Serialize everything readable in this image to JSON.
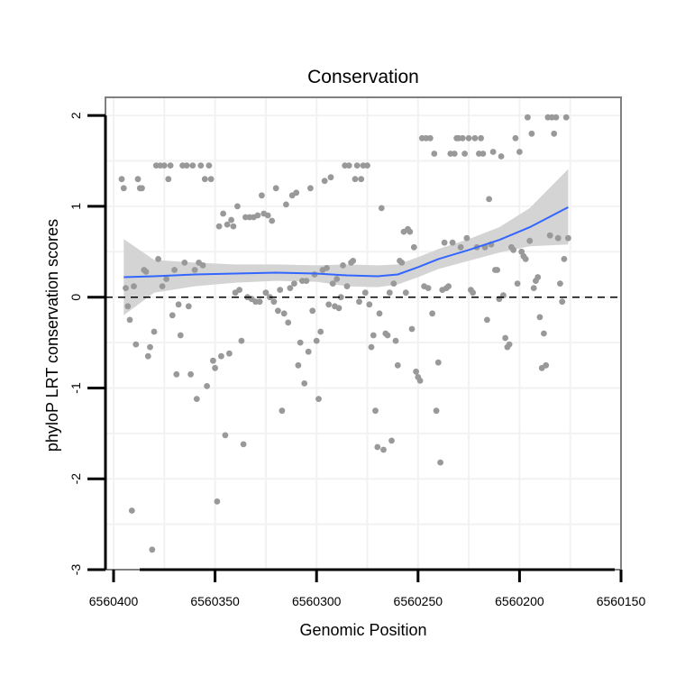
{
  "chart_data": {
    "type": "scatter",
    "title": "Conservation",
    "xlabel": "Genomic Position",
    "ylabel": "phyloP LRT conservation scores",
    "x_reversed": true,
    "xlim": [
      6560404,
      6560150
    ],
    "ylim": [
      -3,
      2.2
    ],
    "xticks": [
      6560400,
      6560350,
      6560300,
      6560250,
      6560200,
      6560150
    ],
    "xtick_labels": [
      "6560400",
      "6560350",
      "6560300",
      "6560250",
      "6560200",
      "6560150"
    ],
    "yticks": [
      -3,
      -2,
      -1,
      0,
      1,
      2
    ],
    "ytick_labels": [
      "-3",
      "-2",
      "-1",
      "0",
      "1",
      "2"
    ],
    "reference_line": {
      "y": 0,
      "style": "dashed"
    },
    "colors": {
      "points": "#999999",
      "smooth": "#3366ff",
      "ribbon": "#d4d4d4",
      "panel_border": "#808080",
      "grid": "#f2f2f2"
    },
    "series": [
      {
        "name": "scores",
        "points": [
          [
            6560396,
            1.3
          ],
          [
            6560395,
            1.2
          ],
          [
            6560394,
            0.1
          ],
          [
            6560393,
            -0.1
          ],
          [
            6560392,
            -0.25
          ],
          [
            6560391,
            -2.35
          ],
          [
            6560390,
            0.12
          ],
          [
            6560389,
            -0.52
          ],
          [
            6560388,
            1.3
          ],
          [
            6560387,
            1.2
          ],
          [
            6560386,
            1.2
          ],
          [
            6560385,
            0.3
          ],
          [
            6560384,
            0.28
          ],
          [
            6560383,
            -0.65
          ],
          [
            6560382,
            -0.55
          ],
          [
            6560381,
            -2.78
          ],
          [
            6560380,
            -0.38
          ],
          [
            6560379,
            1.45
          ],
          [
            6560378,
            0.42
          ],
          [
            6560377,
            1.45
          ],
          [
            6560376,
            0.12
          ],
          [
            6560375,
            1.45
          ],
          [
            6560374,
            0.2
          ],
          [
            6560373,
            1.3
          ],
          [
            6560372,
            1.45
          ],
          [
            6560371,
            -0.2
          ],
          [
            6560370,
            0.3
          ],
          [
            6560369,
            -0.85
          ],
          [
            6560368,
            -0.08
          ],
          [
            6560367,
            -0.42
          ],
          [
            6560366,
            1.45
          ],
          [
            6560365,
            0.38
          ],
          [
            6560364,
            1.45
          ],
          [
            6560363,
            -0.1
          ],
          [
            6560362,
            -0.85
          ],
          [
            6560361,
            1.45
          ],
          [
            6560360,
            0.3
          ],
          [
            6560359,
            -1.12
          ],
          [
            6560358,
            0.38
          ],
          [
            6560357,
            1.45
          ],
          [
            6560356,
            0.35
          ],
          [
            6560355,
            1.3
          ],
          [
            6560354,
            -0.98
          ],
          [
            6560353,
            1.45
          ],
          [
            6560352,
            1.3
          ],
          [
            6560351,
            -0.7
          ],
          [
            6560350,
            -0.78
          ],
          [
            6560349,
            -2.25
          ],
          [
            6560348,
            0.78
          ],
          [
            6560347,
            -0.65
          ],
          [
            6560346,
            0.92
          ],
          [
            6560345,
            -1.52
          ],
          [
            6560344,
            0.8
          ],
          [
            6560343,
            -0.62
          ],
          [
            6560342,
            0.85
          ],
          [
            6560341,
            0.78
          ],
          [
            6560340,
            0.05
          ],
          [
            6560339,
            1.0
          ],
          [
            6560338,
            0.08
          ],
          [
            6560337,
            -0.48
          ],
          [
            6560336,
            -1.62
          ],
          [
            6560335,
            0.88
          ],
          [
            6560334,
            0.0
          ],
          [
            6560333,
            0.88
          ],
          [
            6560332,
            -0.02
          ],
          [
            6560331,
            0.88
          ],
          [
            6560330,
            -0.05
          ],
          [
            6560329,
            0.9
          ],
          [
            6560328,
            -0.05
          ],
          [
            6560327,
            1.12
          ],
          [
            6560326,
            0.92
          ],
          [
            6560325,
            0.05
          ],
          [
            6560324,
            0.9
          ],
          [
            6560323,
            0.0
          ],
          [
            6560322,
            0.84
          ],
          [
            6560321,
            -0.05
          ],
          [
            6560320,
            1.2
          ],
          [
            6560319,
            -0.15
          ],
          [
            6560318,
            0.08
          ],
          [
            6560317,
            -1.25
          ],
          [
            6560316,
            -0.18
          ],
          [
            6560315,
            1.02
          ],
          [
            6560314,
            -0.28
          ],
          [
            6560313,
            0.1
          ],
          [
            6560312,
            1.12
          ],
          [
            6560311,
            0.15
          ],
          [
            6560310,
            1.15
          ],
          [
            6560309,
            -0.75
          ],
          [
            6560308,
            -0.5
          ],
          [
            6560307,
            0.18
          ],
          [
            6560306,
            -0.95
          ],
          [
            6560305,
            0.18
          ],
          [
            6560304,
            -0.6
          ],
          [
            6560303,
            1.2
          ],
          [
            6560302,
            -0.15
          ],
          [
            6560301,
            0.25
          ],
          [
            6560300,
            -0.48
          ],
          [
            6560299,
            -1.12
          ],
          [
            6560298,
            -0.38
          ],
          [
            6560297,
            0.3
          ],
          [
            6560296,
            1.28
          ],
          [
            6560295,
            0.32
          ],
          [
            6560294,
            -0.08
          ],
          [
            6560293,
            1.32
          ],
          [
            6560292,
            0.15
          ],
          [
            6560291,
            -0.1
          ],
          [
            6560290,
            0.2
          ],
          [
            6560289,
            -0.12
          ],
          [
            6560288,
            0.0
          ],
          [
            6560287,
            0.35
          ],
          [
            6560286,
            1.45
          ],
          [
            6560285,
            0.12
          ],
          [
            6560284,
            1.45
          ],
          [
            6560283,
            0.38
          ],
          [
            6560282,
            0.4
          ],
          [
            6560281,
            1.3
          ],
          [
            6560280,
            1.45
          ],
          [
            6560279,
            -0.05
          ],
          [
            6560278,
            1.3
          ],
          [
            6560277,
            1.45
          ],
          [
            6560276,
            0.05
          ],
          [
            6560275,
            1.45
          ],
          [
            6560274,
            -0.08
          ],
          [
            6560273,
            -0.55
          ],
          [
            6560272,
            -0.42
          ],
          [
            6560271,
            -1.25
          ],
          [
            6560270,
            -1.65
          ],
          [
            6560269,
            -0.18
          ],
          [
            6560268,
            0.98
          ],
          [
            6560267,
            -1.68
          ],
          [
            6560266,
            -0.4
          ],
          [
            6560265,
            -0.42
          ],
          [
            6560264,
            0.05
          ],
          [
            6560263,
            -1.58
          ],
          [
            6560262,
            0.15
          ],
          [
            6560261,
            -0.48
          ],
          [
            6560260,
            -0.75
          ],
          [
            6560259,
            0.4
          ],
          [
            6560258,
            0.38
          ],
          [
            6560257,
            0.72
          ],
          [
            6560256,
            0.05
          ],
          [
            6560255,
            0.75
          ],
          [
            6560254,
            0.72
          ],
          [
            6560253,
            -0.35
          ],
          [
            6560252,
            0.55
          ],
          [
            6560251,
            -0.82
          ],
          [
            6560250,
            -0.88
          ],
          [
            6560249,
            -0.92
          ],
          [
            6560248,
            1.75
          ],
          [
            6560247,
            0.12
          ],
          [
            6560246,
            1.75
          ],
          [
            6560245,
            0.1
          ],
          [
            6560244,
            1.75
          ],
          [
            6560243,
            -0.18
          ],
          [
            6560242,
            1.58
          ],
          [
            6560241,
            -1.25
          ],
          [
            6560240,
            -0.72
          ],
          [
            6560239,
            -1.82
          ],
          [
            6560238,
            0.08
          ],
          [
            6560237,
            0.6
          ],
          [
            6560236,
            0.1
          ],
          [
            6560235,
            0.12
          ],
          [
            6560234,
            1.58
          ],
          [
            6560233,
            0.6
          ],
          [
            6560232,
            1.58
          ],
          [
            6560231,
            1.75
          ],
          [
            6560230,
            1.75
          ],
          [
            6560229,
            0.55
          ],
          [
            6560228,
            1.75
          ],
          [
            6560227,
            1.58
          ],
          [
            6560226,
            0.65
          ],
          [
            6560225,
            1.75
          ],
          [
            6560224,
            0.08
          ],
          [
            6560223,
            0.05
          ],
          [
            6560222,
            1.75
          ],
          [
            6560221,
            0.55
          ],
          [
            6560220,
            1.58
          ],
          [
            6560219,
            1.75
          ],
          [
            6560218,
            1.58
          ],
          [
            6560217,
            0.55
          ],
          [
            6560216,
            -0.25
          ],
          [
            6560215,
            1.08
          ],
          [
            6560214,
            0.58
          ],
          [
            6560213,
            1.6
          ],
          [
            6560212,
            0.3
          ],
          [
            6560211,
            0.3
          ],
          [
            6560210,
            -0.02
          ],
          [
            6560209,
            1.55
          ],
          [
            6560208,
            0.02
          ],
          [
            6560207,
            -0.45
          ],
          [
            6560206,
            -0.55
          ],
          [
            6560205,
            -0.52
          ],
          [
            6560204,
            0.55
          ],
          [
            6560203,
            0.52
          ],
          [
            6560202,
            1.75
          ],
          [
            6560201,
            0.15
          ],
          [
            6560200,
            1.6
          ],
          [
            6560199,
            0.5
          ],
          [
            6560198,
            0.45
          ],
          [
            6560197,
            0.42
          ],
          [
            6560196,
            1.98
          ],
          [
            6560195,
            0.62
          ],
          [
            6560194,
            1.8
          ],
          [
            6560193,
            0.1
          ],
          [
            6560192,
            0.18
          ],
          [
            6560191,
            0.22
          ],
          [
            6560190,
            -0.22
          ],
          [
            6560189,
            -0.78
          ],
          [
            6560188,
            -0.4
          ],
          [
            6560187,
            -0.75
          ],
          [
            6560186,
            1.98
          ],
          [
            6560185,
            0.68
          ],
          [
            6560184,
            1.98
          ],
          [
            6560183,
            1.8
          ],
          [
            6560182,
            1.98
          ],
          [
            6560181,
            0.65
          ],
          [
            6560180,
            0.15
          ],
          [
            6560179,
            -0.05
          ],
          [
            6560178,
            0.42
          ],
          [
            6560177,
            1.98
          ],
          [
            6560176,
            0.65
          ]
        ]
      }
    ],
    "smooth": {
      "method": "loess",
      "x": [
        6560395,
        6560380,
        6560360,
        6560340,
        6560320,
        6560300,
        6560285,
        6560270,
        6560260,
        6560250,
        6560240,
        6560225,
        6560210,
        6560195,
        6560176
      ],
      "y": [
        0.22,
        0.23,
        0.25,
        0.26,
        0.27,
        0.26,
        0.24,
        0.23,
        0.25,
        0.33,
        0.42,
        0.52,
        0.63,
        0.77,
        0.99
      ],
      "ci_low": [
        -0.2,
        0.05,
        0.12,
        0.16,
        0.18,
        0.17,
        0.12,
        0.11,
        0.14,
        0.22,
        0.31,
        0.4,
        0.49,
        0.56,
        0.58
      ],
      "ci_high": [
        0.64,
        0.41,
        0.38,
        0.36,
        0.36,
        0.35,
        0.36,
        0.35,
        0.36,
        0.44,
        0.53,
        0.64,
        0.77,
        0.98,
        1.41
      ]
    }
  }
}
